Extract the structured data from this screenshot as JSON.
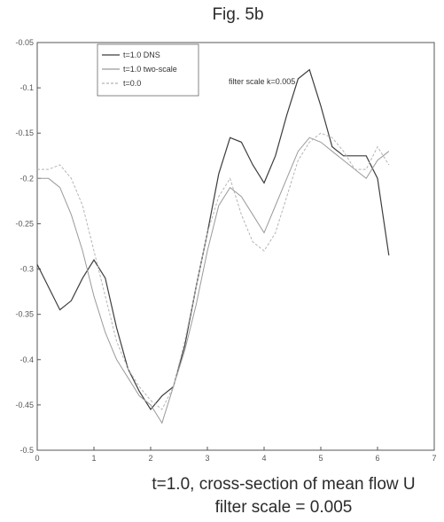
{
  "chart_data": {
    "type": "line",
    "title": "Fig. 5b",
    "xlabel": "",
    "ylabel": "",
    "xlim": [
      0,
      7
    ],
    "ylim": [
      -0.5,
      -0.05
    ],
    "x_ticks": [
      "0",
      "1",
      "2",
      "3",
      "4",
      "5",
      "6",
      "7"
    ],
    "y_ticks": [
      "-0.05",
      "-0.1",
      "-0.15",
      "-0.2",
      "-0.25",
      "-0.3",
      "-0.35",
      "-0.4",
      "-0.45",
      "-0.5"
    ],
    "grid": false,
    "legend_position": "top-left",
    "annotation": "filter scale k=0.005",
    "series": [
      {
        "name": "t=1.0 DNS",
        "color": "#3d3d3d",
        "x": [
          0.0,
          0.2,
          0.4,
          0.6,
          0.8,
          1.0,
          1.2,
          1.4,
          1.6,
          1.8,
          2.0,
          2.2,
          2.4,
          2.6,
          2.8,
          3.0,
          3.2,
          3.4,
          3.6,
          3.8,
          4.0,
          4.2,
          4.4,
          4.6,
          4.8,
          5.0,
          5.2,
          5.4,
          5.6,
          5.8,
          6.0,
          6.2
        ],
        "y": [
          -0.295,
          -0.32,
          -0.345,
          -0.335,
          -0.31,
          -0.29,
          -0.31,
          -0.365,
          -0.41,
          -0.435,
          -0.455,
          -0.44,
          -0.43,
          -0.385,
          -0.32,
          -0.26,
          -0.195,
          -0.155,
          -0.16,
          -0.185,
          -0.205,
          -0.175,
          -0.13,
          -0.09,
          -0.08,
          -0.12,
          -0.165,
          -0.175,
          -0.175,
          -0.175,
          -0.2,
          -0.285
        ]
      },
      {
        "name": "t=1.0 two-scale",
        "color": "#9a9a9a",
        "x": [
          0.0,
          0.2,
          0.4,
          0.6,
          0.8,
          1.0,
          1.2,
          1.4,
          1.6,
          1.8,
          2.0,
          2.2,
          2.4,
          2.6,
          2.8,
          3.0,
          3.2,
          3.4,
          3.6,
          3.8,
          4.0,
          4.2,
          4.4,
          4.6,
          4.8,
          5.0,
          5.2,
          5.4,
          5.6,
          5.8,
          6.0,
          6.2
        ],
        "y": [
          -0.2,
          -0.2,
          -0.21,
          -0.24,
          -0.28,
          -0.33,
          -0.37,
          -0.4,
          -0.42,
          -0.44,
          -0.45,
          -0.47,
          -0.43,
          -0.39,
          -0.34,
          -0.28,
          -0.23,
          -0.21,
          -0.22,
          -0.24,
          -0.26,
          -0.23,
          -0.2,
          -0.17,
          -0.155,
          -0.16,
          -0.17,
          -0.18,
          -0.19,
          -0.2,
          -0.18,
          -0.17
        ]
      },
      {
        "name": "t=0.0",
        "color": "#b5b5b5",
        "x": [
          0.0,
          0.2,
          0.4,
          0.6,
          0.8,
          1.0,
          1.2,
          1.4,
          1.6,
          1.8,
          2.0,
          2.2,
          2.4,
          2.6,
          2.8,
          3.0,
          3.2,
          3.4,
          3.6,
          3.8,
          4.0,
          4.2,
          4.4,
          4.6,
          4.8,
          5.0,
          5.2,
          5.4,
          5.6,
          5.8,
          6.0,
          6.2
        ],
        "y": [
          -0.19,
          -0.19,
          -0.185,
          -0.2,
          -0.23,
          -0.28,
          -0.33,
          -0.38,
          -0.41,
          -0.43,
          -0.445,
          -0.455,
          -0.43,
          -0.38,
          -0.32,
          -0.26,
          -0.22,
          -0.2,
          -0.24,
          -0.27,
          -0.28,
          -0.26,
          -0.22,
          -0.18,
          -0.16,
          -0.15,
          -0.155,
          -0.17,
          -0.19,
          -0.19,
          -0.165,
          -0.185
        ]
      }
    ]
  },
  "caption": {
    "line1": "t=1.0, cross-section of mean flow U",
    "line2": "filter scale = 0.005"
  }
}
